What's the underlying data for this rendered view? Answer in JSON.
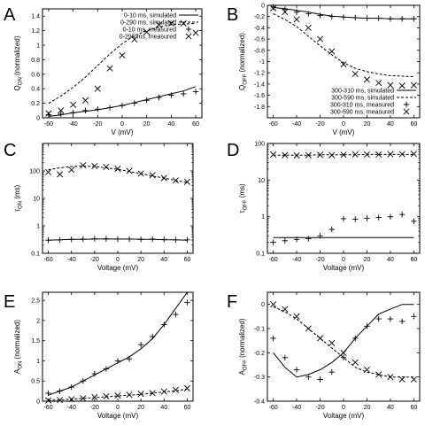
{
  "chart_data": [
    {
      "panel": "A",
      "type": "line",
      "xlabel": "V (mV)",
      "ylabel": "Q_ON (normalized)",
      "xlim": [
        -65,
        65
      ],
      "ylim": [
        0,
        1.5
      ],
      "xticks": [
        -60,
        -40,
        -20,
        0,
        20,
        40,
        60
      ],
      "yticks": [
        0,
        0.2,
        0.4,
        0.6,
        0.8,
        1,
        1.2,
        1.4
      ],
      "legend_position": "top-right",
      "series": [
        {
          "name": "0-10 ms, simulated",
          "style": "solid",
          "x": [
            -60,
            -50,
            -40,
            -30,
            -20,
            -10,
            0,
            10,
            20,
            30,
            40,
            50,
            60
          ],
          "y": [
            0.02,
            0.04,
            0.07,
            0.09,
            0.11,
            0.14,
            0.17,
            0.21,
            0.25,
            0.29,
            0.33,
            0.37,
            0.43
          ]
        },
        {
          "name": "0-290 ms, simulated",
          "style": "dashed",
          "x": [
            -60,
            -50,
            -40,
            -30,
            -20,
            -10,
            0,
            10,
            20,
            30,
            40,
            50,
            60
          ],
          "y": [
            0.2,
            0.3,
            0.42,
            0.56,
            0.72,
            0.88,
            1.02,
            1.13,
            1.2,
            1.25,
            1.28,
            1.29,
            1.3
          ]
        },
        {
          "name": "0-10 ms, measured",
          "marker": "plus",
          "x": [
            -60,
            -50,
            -40,
            -30,
            -20,
            -10,
            0,
            10,
            20,
            30,
            40,
            50,
            60
          ],
          "y": [
            0.04,
            0.05,
            0.07,
            0.1,
            0.12,
            0.14,
            0.17,
            0.2,
            0.24,
            0.28,
            0.31,
            0.33,
            0.36
          ]
        },
        {
          "name": "0-290 ms, measured",
          "marker": "cross",
          "x": [
            -60,
            -50,
            -40,
            -30,
            -20,
            -10,
            0,
            10,
            20,
            30,
            40,
            50,
            60
          ],
          "y": [
            0.06,
            0.1,
            0.18,
            0.24,
            0.4,
            0.68,
            0.86,
            1.08,
            1.18,
            1.28,
            1.3,
            1.3,
            1.17
          ]
        }
      ]
    },
    {
      "panel": "B",
      "type": "line",
      "xlabel": "V (mV)",
      "ylabel": "Q_OFF (normalized)",
      "xlim": [
        -65,
        65
      ],
      "ylim": [
        -2.0,
        0
      ],
      "xticks": [
        -60,
        -40,
        -20,
        0,
        20,
        40,
        60
      ],
      "yticks": [
        0,
        -0.2,
        -0.4,
        -0.6,
        -0.8,
        -1,
        -1.2,
        -1.4,
        -1.6,
        -1.8
      ],
      "legend_position": "bottom-right",
      "series": [
        {
          "name": "300-310 ms, simulated",
          "style": "solid",
          "x": [
            -60,
            -50,
            -40,
            -30,
            -20,
            -10,
            0,
            10,
            20,
            30,
            40,
            50,
            60
          ],
          "y": [
            -0.04,
            -0.06,
            -0.09,
            -0.12,
            -0.16,
            -0.19,
            -0.21,
            -0.22,
            -0.23,
            -0.23,
            -0.24,
            -0.24,
            -0.24
          ]
        },
        {
          "name": "300-590 ms, simulated",
          "style": "dashed",
          "x": [
            -60,
            -50,
            -40,
            -30,
            -20,
            -10,
            0,
            10,
            20,
            30,
            40,
            50,
            60
          ],
          "y": [
            -0.15,
            -0.25,
            -0.38,
            -0.55,
            -0.72,
            -0.88,
            -1.02,
            -1.12,
            -1.18,
            -1.22,
            -1.25,
            -1.26,
            -1.27
          ]
        },
        {
          "name": "300-310 ms, measured",
          "marker": "plus",
          "x": [
            -60,
            -50,
            -40,
            -30,
            -20,
            -10,
            0,
            10,
            20,
            30,
            40,
            50,
            60
          ],
          "y": [
            -0.03,
            -0.07,
            -0.12,
            -0.15,
            -0.18,
            -0.2,
            -0.21,
            -0.22,
            -0.23,
            -0.23,
            -0.24,
            -0.24,
            -0.24
          ]
        },
        {
          "name": "300-590 ms, measured",
          "marker": "cross",
          "x": [
            -60,
            -50,
            -40,
            -30,
            -20,
            -10,
            0,
            10,
            20,
            30,
            40,
            50,
            60
          ],
          "y": [
            -0.05,
            -0.12,
            -0.25,
            -0.4,
            -0.6,
            -0.82,
            -1.05,
            -1.22,
            -1.32,
            -1.38,
            -1.42,
            -1.43,
            -1.42
          ]
        }
      ]
    },
    {
      "panel": "C",
      "type": "line",
      "xlabel": "Voltage (mV)",
      "ylabel": "τ_ON (ms)",
      "xlim": [
        -65,
        65
      ],
      "ylim": [
        0.1,
        1000
      ],
      "yscale": "log",
      "xticks": [
        -60,
        -40,
        -20,
        0,
        20,
        40,
        60
      ],
      "yticks": [
        0.1,
        1,
        10,
        100
      ],
      "series": [
        {
          "style": "dashed",
          "x": [
            -60,
            -50,
            -40,
            -30,
            -20,
            -10,
            0,
            10,
            20,
            30,
            40,
            50,
            60
          ],
          "y": [
            110,
            130,
            145,
            150,
            145,
            130,
            115,
            95,
            80,
            65,
            55,
            45,
            38
          ]
        },
        {
          "style": "solid",
          "x": [
            -60,
            -50,
            -40,
            -30,
            -20,
            -10,
            0,
            10,
            20,
            30,
            40,
            50,
            60
          ],
          "y": [
            0.3,
            0.31,
            0.32,
            0.32,
            0.33,
            0.33,
            0.33,
            0.33,
            0.32,
            0.32,
            0.31,
            0.31,
            0.3
          ]
        },
        {
          "marker": "cross",
          "x": [
            -60,
            -50,
            -40,
            -30,
            -20,
            -10,
            0,
            10,
            20,
            30,
            40,
            50,
            60
          ],
          "y": [
            90,
            75,
            110,
            160,
            150,
            140,
            120,
            100,
            80,
            70,
            55,
            45,
            40
          ]
        },
        {
          "marker": "plus",
          "x": [
            -60,
            -50,
            -40,
            -30,
            -20,
            -10,
            0,
            10,
            20,
            30,
            40,
            50,
            60
          ],
          "y": [
            0.3,
            0.31,
            0.32,
            0.33,
            0.34,
            0.34,
            0.33,
            0.33,
            0.32,
            0.33,
            0.32,
            0.31,
            0.31
          ]
        }
      ]
    },
    {
      "panel": "D",
      "type": "line",
      "xlabel": "Voltage (mV)",
      "ylabel": "τ_OFF (ms)",
      "xlim": [
        -65,
        65
      ],
      "ylim": [
        0.1,
        100
      ],
      "yscale": "log",
      "xticks": [
        -60,
        -40,
        -20,
        0,
        20,
        40,
        60
      ],
      "yticks": [
        0.1,
        1,
        10,
        100
      ],
      "series": [
        {
          "style": "dashed",
          "x": [
            -60,
            -50,
            -40,
            -30,
            -20,
            -10,
            0,
            10,
            20,
            30,
            40,
            50,
            60
          ],
          "y": [
            48,
            48,
            48,
            48,
            49,
            49,
            49,
            49,
            50,
            50,
            50,
            50,
            50
          ]
        },
        {
          "style": "solid",
          "x": [
            -60,
            -50,
            -40,
            -30,
            -20,
            -10,
            0,
            10,
            20,
            30,
            40,
            50,
            60
          ],
          "y": [
            0.27,
            0.27,
            0.27,
            0.27,
            0.27,
            0.27,
            0.27,
            0.27,
            0.27,
            0.27,
            0.27,
            0.27,
            0.27
          ]
        },
        {
          "marker": "cross",
          "x": [
            -60,
            -50,
            -40,
            -30,
            -20,
            -10,
            0,
            10,
            20,
            30,
            40,
            50,
            60
          ],
          "y": [
            50,
            48,
            47,
            48,
            49,
            48,
            49,
            50,
            50,
            50,
            51,
            51,
            52
          ]
        },
        {
          "marker": "plus",
          "x": [
            -60,
            -50,
            -40,
            -30,
            -20,
            -10,
            0,
            10,
            20,
            30,
            40,
            50,
            60
          ],
          "y": [
            0.2,
            0.22,
            0.24,
            0.25,
            0.3,
            0.45,
            0.88,
            0.85,
            0.9,
            0.95,
            1.0,
            1.15,
            0.75
          ]
        }
      ]
    },
    {
      "panel": "E",
      "type": "line",
      "xlabel": "Voltage (mV)",
      "ylabel": "A_ON (normalized)",
      "xlim": [
        -65,
        65
      ],
      "ylim": [
        0,
        2.7
      ],
      "xticks": [
        -60,
        -40,
        -20,
        0,
        20,
        40,
        60
      ],
      "yticks": [
        0,
        0.5,
        1,
        1.5,
        2,
        2.5
      ],
      "series": [
        {
          "style": "solid",
          "x": [
            -60,
            -50,
            -40,
            -30,
            -20,
            -10,
            0,
            10,
            20,
            30,
            40,
            50,
            60
          ],
          "y": [
            0.15,
            0.25,
            0.35,
            0.5,
            0.65,
            0.8,
            0.95,
            1.1,
            1.3,
            1.55,
            1.9,
            2.3,
            2.7
          ]
        },
        {
          "style": "dashed",
          "x": [
            -60,
            -50,
            -40,
            -30,
            -20,
            -10,
            0,
            10,
            20,
            30,
            40,
            50,
            60
          ],
          "y": [
            0.02,
            0.03,
            0.05,
            0.07,
            0.09,
            0.11,
            0.13,
            0.15,
            0.17,
            0.2,
            0.23,
            0.26,
            0.3
          ]
        },
        {
          "marker": "plus",
          "x": [
            -60,
            -50,
            -40,
            -30,
            -20,
            -10,
            0,
            10,
            20,
            30,
            40,
            50,
            60
          ],
          "y": [
            0.2,
            0.25,
            0.35,
            0.5,
            0.68,
            0.8,
            1.0,
            1.05,
            1.4,
            1.6,
            1.9,
            2.15,
            2.45
          ]
        },
        {
          "marker": "cross",
          "x": [
            -60,
            -50,
            -40,
            -30,
            -20,
            -10,
            0,
            10,
            20,
            30,
            40,
            50,
            60
          ],
          "y": [
            0.02,
            0.03,
            0.05,
            0.07,
            0.1,
            0.12,
            0.14,
            0.16,
            0.18,
            0.2,
            0.24,
            0.28,
            0.32
          ]
        }
      ]
    },
    {
      "panel": "F",
      "type": "line",
      "xlabel": "Voltage (mV)",
      "ylabel": "A_OFF (normalized)",
      "xlim": [
        -65,
        65
      ],
      "ylim": [
        -0.4,
        0.05
      ],
      "xticks": [
        -60,
        -40,
        -20,
        0,
        20,
        40,
        60
      ],
      "yticks": [
        0,
        -0.1,
        -0.2,
        -0.3,
        -0.4
      ],
      "series": [
        {
          "style": "solid",
          "x": [
            -60,
            -50,
            -40,
            -30,
            -20,
            -10,
            0,
            10,
            20,
            30,
            40,
            50,
            60
          ],
          "y": [
            -0.2,
            -0.26,
            -0.3,
            -0.29,
            -0.27,
            -0.24,
            -0.2,
            -0.14,
            -0.09,
            -0.04,
            -0.02,
            0.0,
            0.0
          ]
        },
        {
          "style": "dashed",
          "x": [
            -60,
            -50,
            -40,
            -30,
            -20,
            -10,
            0,
            10,
            20,
            30,
            40,
            50,
            60
          ],
          "y": [
            -0.01,
            -0.03,
            -0.06,
            -0.1,
            -0.14,
            -0.18,
            -0.22,
            -0.26,
            -0.28,
            -0.29,
            -0.3,
            -0.3,
            -0.3
          ]
        },
        {
          "marker": "plus",
          "x": [
            -60,
            -50,
            -40,
            -30,
            -20,
            -10,
            0,
            10,
            20,
            30,
            40,
            50,
            60
          ],
          "y": [
            -0.14,
            -0.22,
            -0.27,
            -0.3,
            -0.31,
            -0.28,
            -0.22,
            -0.14,
            -0.09,
            -0.06,
            -0.06,
            -0.07,
            -0.05
          ]
        },
        {
          "marker": "cross",
          "x": [
            -60,
            -50,
            -40,
            -30,
            -20,
            -10,
            0,
            10,
            20,
            30,
            40,
            50,
            60
          ],
          "y": [
            0.0,
            -0.02,
            -0.05,
            -0.1,
            -0.14,
            -0.16,
            -0.2,
            -0.24,
            -0.27,
            -0.29,
            -0.3,
            -0.31,
            -0.31
          ]
        }
      ]
    }
  ]
}
